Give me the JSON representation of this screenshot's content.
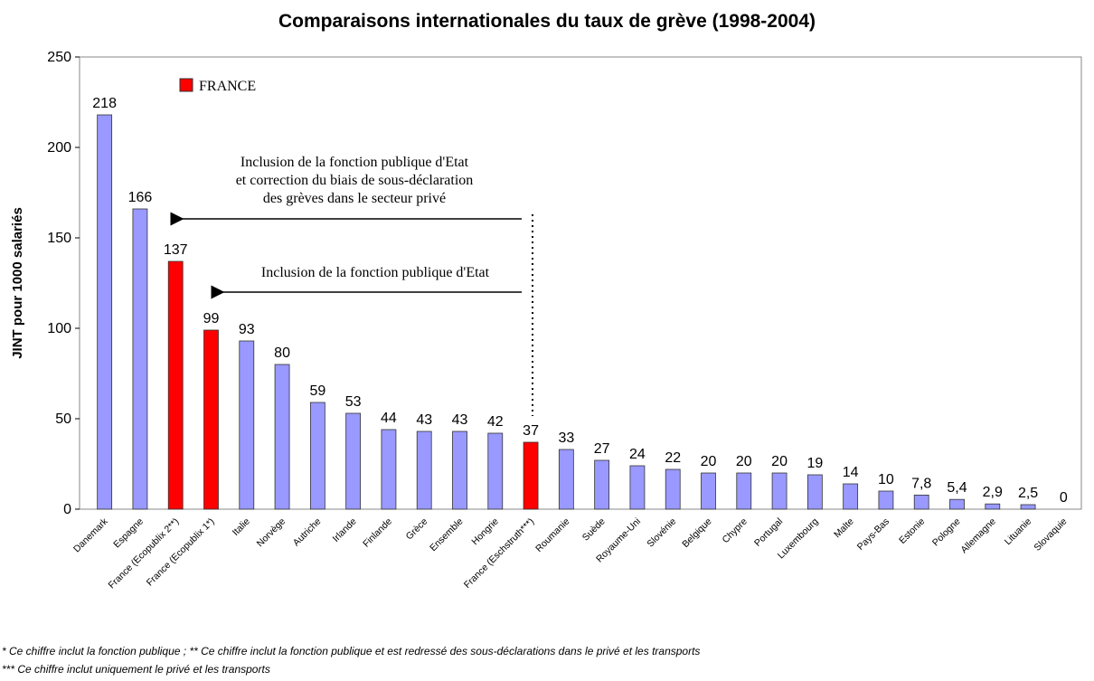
{
  "chart_data": {
    "type": "bar",
    "title": "Comparaisons internationales du taux de grève (1998-2004)",
    "y_label": "JINT pour 1000 salariés",
    "categories": [
      "Danemark",
      "Espagne",
      "France (Ecopublix 2**)",
      "France (Ecopublix 1*)",
      "Italie",
      "Norvège",
      "Autriche",
      "Irlande",
      "Finlande",
      "Grèce",
      "Ensemble",
      "Hongrie",
      "France (Eschstruth***)",
      "Roumanie",
      "Suède",
      "Royaume-Uni",
      "Slovénie",
      "Belgique",
      "Chypre",
      "Portugal",
      "Luxembourg",
      "Malte",
      "Pays-Bas",
      "Estonie",
      "Pologne",
      "Allemagne",
      "Lituanie",
      "Slovaquie"
    ],
    "values": [
      218,
      166,
      137,
      99,
      93,
      80,
      59,
      53,
      44,
      43,
      43,
      42,
      37,
      33,
      27,
      24,
      22,
      20,
      20,
      20,
      19,
      14,
      10,
      7.8,
      5.4,
      2.9,
      2.5,
      0
    ],
    "value_labels": [
      "218",
      "166",
      "137",
      "99",
      "93",
      "80",
      "59",
      "53",
      "44",
      "43",
      "43",
      "42",
      "37",
      "33",
      "27",
      "24",
      "22",
      "20",
      "20",
      "20",
      "19",
      "14",
      "10",
      "7,8",
      "5,4",
      "2,9",
      "2,5",
      "0"
    ],
    "colors": [
      "#9999ff",
      "#9999ff",
      "#ff0000",
      "#ff0000",
      "#9999ff",
      "#9999ff",
      "#9999ff",
      "#9999ff",
      "#9999ff",
      "#9999ff",
      "#9999ff",
      "#9999ff",
      "#ff0000",
      "#9999ff",
      "#9999ff",
      "#9999ff",
      "#9999ff",
      "#9999ff",
      "#9999ff",
      "#9999ff",
      "#9999ff",
      "#9999ff",
      "#9999ff",
      "#9999ff",
      "#9999ff",
      "#9999ff",
      "#9999ff",
      "#9999ff"
    ],
    "legend": {
      "name": "FRANCE",
      "color": "#ff0000"
    },
    "ylim": [
      0,
      250
    ],
    "yticks": [
      0,
      50,
      100,
      150,
      200,
      250
    ],
    "annotations": [
      [
        "Inclusion de la fonction publique d'Etat",
        "et correction du biais de sous-déclaration",
        "des grèves dans le secteur privé"
      ],
      [
        "Inclusion de la fonction publique d'Etat"
      ]
    ],
    "footnotes": [
      "* Ce chiffre inclut la fonction publique ; ** Ce chiffre inclut la fonction publique et est redressé des sous-déclarations dans le privé et les transports",
      "*** Ce chiffre inclut uniquement le privé et les transports"
    ]
  }
}
